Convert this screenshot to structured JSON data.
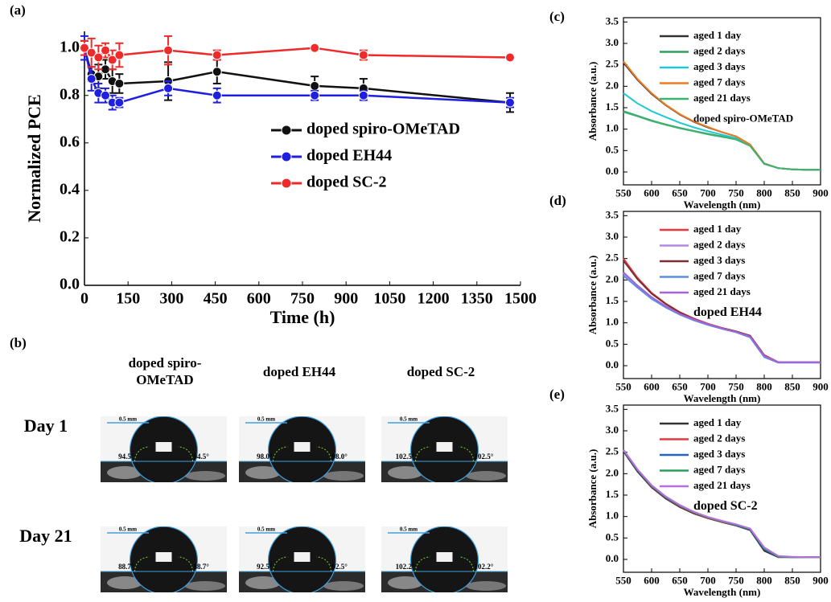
{
  "chart_data": [
    {
      "type": "line",
      "panel_label": "(a)",
      "x_label": "Time (h)",
      "y_label": "Normalized PCE",
      "x": [
        0,
        24,
        48,
        72,
        96,
        120,
        288,
        456,
        792,
        960,
        1464
      ],
      "xlim": [
        0,
        1500
      ],
      "xticks": [
        0,
        150,
        300,
        450,
        600,
        750,
        900,
        1050,
        1200,
        1350,
        1500
      ],
      "ylim": [
        0,
        1.07
      ],
      "yticks": [
        {
          "value": 0,
          "label": "0.0"
        },
        0.2,
        0.4,
        0.6,
        0.8,
        {
          "value": 1,
          "label": "1.0"
        }
      ],
      "grid": false,
      "markers": true,
      "legend": "center right",
      "series": [
        {
          "name": "doped spiro-OMeTAD",
          "color": "#111111",
          "values": [
            1.0,
            0.89,
            0.88,
            0.91,
            0.86,
            0.85,
            0.86,
            0.9,
            0.84,
            0.83,
            0.77
          ],
          "errors": [
            0.03,
            0.03,
            0.05,
            0.04,
            0.05,
            0.04,
            0.08,
            0.05,
            0.04,
            0.04,
            0.04
          ]
        },
        {
          "name": "doped EH44",
          "color": "#1f1fe0",
          "values": [
            1.0,
            0.87,
            0.81,
            0.8,
            0.77,
            0.77,
            0.83,
            0.8,
            0.8,
            0.8,
            0.77
          ],
          "errors": [
            0.05,
            0.05,
            0.04,
            0.03,
            0.03,
            0.02,
            0.03,
            0.03,
            0.02,
            0.02,
            0.02
          ]
        },
        {
          "name": "doped SC-2",
          "color": "#ee2a2a",
          "values": [
            1.0,
            0.98,
            0.96,
            0.99,
            0.95,
            0.97,
            0.99,
            0.97,
            1.0,
            0.97,
            0.96
          ],
          "errors": [
            0.03,
            0.06,
            0.05,
            0.03,
            0.04,
            0.05,
            0.06,
            0.02,
            0.01,
            0.02,
            0.01
          ]
        }
      ]
    },
    {
      "type": "line",
      "panel_label": "(c)",
      "x_label": "Wavelength (nm)",
      "y_label": "Absorbance (a.u.)",
      "x": [
        550,
        575,
        600,
        625,
        650,
        675,
        700,
        725,
        750,
        775,
        800,
        825,
        850,
        875,
        900
      ],
      "xlim": [
        550,
        900
      ],
      "xticks": [
        550,
        600,
        650,
        700,
        750,
        800,
        850,
        900
      ],
      "ylim": [
        -0.3,
        3.6
      ],
      "yticks": [
        {
          "value": 0,
          "label": "0.0"
        },
        0.5,
        {
          "value": 1,
          "label": "1.0"
        },
        1.5,
        {
          "value": 2,
          "label": "2.0"
        },
        2.5,
        {
          "value": 3,
          "label": "3.0"
        },
        3.5
      ],
      "grid": false,
      "markers": false,
      "legend": "upper right",
      "annotation": {
        "text": "doped spiro-OMeTAD",
        "color": "#111111"
      },
      "series": [
        {
          "name": "aged 1 day",
          "color": "#333333",
          "values": [
            2.55,
            2.15,
            1.82,
            1.56,
            1.34,
            1.17,
            1.04,
            0.93,
            0.83,
            0.64,
            0.2,
            0.09,
            0.06,
            0.05,
            0.05
          ]
        },
        {
          "name": "aged 2 days",
          "color": "#2e9e5b",
          "values": [
            1.42,
            1.31,
            1.2,
            1.11,
            1.03,
            0.96,
            0.89,
            0.83,
            0.76,
            0.61,
            0.19,
            0.09,
            0.06,
            0.05,
            0.05
          ]
        },
        {
          "name": "aged 3 days",
          "color": "#1fc8d8",
          "values": [
            1.84,
            1.6,
            1.42,
            1.28,
            1.15,
            1.04,
            0.95,
            0.87,
            0.79,
            0.62,
            0.19,
            0.09,
            0.06,
            0.05,
            0.05
          ]
        },
        {
          "name": "aged 7 days",
          "color": "#f07a22",
          "values": [
            2.58,
            2.17,
            1.84,
            1.57,
            1.35,
            1.18,
            1.05,
            0.93,
            0.83,
            0.64,
            0.2,
            0.09,
            0.06,
            0.05,
            0.05
          ]
        },
        {
          "name": "aged 21 days",
          "color": "#3cb371",
          "values": [
            1.4,
            1.3,
            1.19,
            1.1,
            1.02,
            0.95,
            0.88,
            0.82,
            0.76,
            0.61,
            0.19,
            0.09,
            0.06,
            0.05,
            0.05
          ]
        }
      ]
    },
    {
      "type": "line",
      "panel_label": "(d)",
      "x_label": "Wavelength (nm)",
      "y_label": "Absorbance (a.u.)",
      "x": [
        550,
        575,
        600,
        625,
        650,
        675,
        700,
        725,
        750,
        775,
        800,
        825,
        850,
        875,
        900
      ],
      "xlim": [
        550,
        900
      ],
      "xticks": [
        550,
        600,
        650,
        700,
        750,
        800,
        850,
        900
      ],
      "ylim": [
        -0.3,
        3.6
      ],
      "yticks": [
        {
          "value": 0,
          "label": "0.0"
        },
        0.5,
        {
          "value": 1,
          "label": "1.0"
        },
        1.5,
        {
          "value": 2,
          "label": "2.0"
        },
        2.5,
        {
          "value": 3,
          "label": "3.0"
        },
        3.5
      ],
      "grid": false,
      "markers": false,
      "legend": "upper right",
      "annotation": {
        "text": "doped EH44",
        "color": "#1f1fe0"
      },
      "series": [
        {
          "name": "aged 1 day",
          "color": "#e8383d",
          "values": [
            2.5,
            2.05,
            1.7,
            1.45,
            1.25,
            1.1,
            0.98,
            0.88,
            0.8,
            0.7,
            0.25,
            0.08,
            0.08,
            0.08,
            0.08
          ]
        },
        {
          "name": "aged 2 days",
          "color": "#b388e6",
          "values": [
            2.15,
            1.85,
            1.58,
            1.38,
            1.2,
            1.07,
            0.96,
            0.87,
            0.79,
            0.68,
            0.22,
            0.08,
            0.08,
            0.08,
            0.08
          ]
        },
        {
          "name": "aged 3 days",
          "color": "#7b2d32",
          "values": [
            2.45,
            2.02,
            1.68,
            1.44,
            1.24,
            1.09,
            0.97,
            0.88,
            0.8,
            0.7,
            0.24,
            0.08,
            0.08,
            0.08,
            0.08
          ]
        },
        {
          "name": "aged 7 days",
          "color": "#5b8fd9",
          "values": [
            2.1,
            1.82,
            1.56,
            1.36,
            1.19,
            1.06,
            0.95,
            0.86,
            0.78,
            0.66,
            0.2,
            0.07,
            0.07,
            0.07,
            0.07
          ]
        },
        {
          "name": "aged 21 days",
          "color": "#a463d8",
          "values": [
            2.18,
            1.87,
            1.6,
            1.39,
            1.21,
            1.08,
            0.97,
            0.87,
            0.79,
            0.68,
            0.23,
            0.08,
            0.08,
            0.08,
            0.08
          ]
        }
      ]
    },
    {
      "type": "line",
      "panel_label": "(e)",
      "x_label": "Wavelength (nm)",
      "y_label": "Absorbance (a.u.)",
      "x": [
        550,
        575,
        600,
        625,
        650,
        675,
        700,
        725,
        750,
        775,
        800,
        825,
        850,
        875,
        900
      ],
      "xlim": [
        550,
        900
      ],
      "xticks": [
        550,
        600,
        650,
        700,
        750,
        800,
        850,
        900
      ],
      "ylim": [
        -0.3,
        3.6
      ],
      "yticks": [
        {
          "value": 0,
          "label": "0.0"
        },
        0.5,
        {
          "value": 1,
          "label": "1.0"
        },
        1.5,
        {
          "value": 2,
          "label": "2.0"
        },
        2.5,
        {
          "value": 3,
          "label": "3.0"
        },
        3.5
      ],
      "grid": false,
      "markers": false,
      "legend": "upper right",
      "annotation": {
        "text": "doped SC-2",
        "color": "#ee2a2a"
      },
      "series": [
        {
          "name": "aged 1 day",
          "color": "#333333",
          "values": [
            2.52,
            2.05,
            1.68,
            1.42,
            1.22,
            1.07,
            0.96,
            0.87,
            0.79,
            0.68,
            0.2,
            0.05,
            0.05,
            0.05,
            0.05
          ]
        },
        {
          "name": "aged 2 days",
          "color": "#e0393e",
          "values": [
            2.55,
            2.08,
            1.7,
            1.44,
            1.24,
            1.09,
            0.97,
            0.88,
            0.8,
            0.7,
            0.24,
            0.06,
            0.05,
            0.05,
            0.05
          ]
        },
        {
          "name": "aged 3 days",
          "color": "#2762c9",
          "values": [
            2.55,
            2.08,
            1.71,
            1.45,
            1.25,
            1.1,
            0.98,
            0.89,
            0.8,
            0.7,
            0.24,
            0.06,
            0.05,
            0.05,
            0.05
          ]
        },
        {
          "name": "aged 7 days",
          "color": "#2e9e5b",
          "values": [
            2.55,
            2.09,
            1.72,
            1.46,
            1.26,
            1.1,
            0.98,
            0.89,
            0.81,
            0.71,
            0.26,
            0.07,
            0.05,
            0.05,
            0.05
          ]
        },
        {
          "name": "aged 21 days",
          "color": "#b76fe0",
          "values": [
            2.56,
            2.1,
            1.73,
            1.47,
            1.27,
            1.11,
            0.99,
            0.9,
            0.82,
            0.72,
            0.28,
            0.08,
            0.06,
            0.05,
            0.05
          ]
        }
      ]
    }
  ],
  "panel_b": {
    "label": "(b)",
    "columns": [
      "doped spiro-OMeTAD",
      "doped EH44",
      "doped SC-2"
    ],
    "rows": [
      {
        "label": "Day 1",
        "images": [
          {
            "scale": "0.5 mm",
            "angles": [
              "94.5°",
              "94.5°"
            ]
          },
          {
            "scale": "0.5 mm",
            "angles": [
              "98.0°",
              "98.0°"
            ]
          },
          {
            "scale": "0.5 mm",
            "angles": [
              "102.5°",
              "102.5°"
            ]
          }
        ]
      },
      {
        "label": "Day 21",
        "images": [
          {
            "scale": "0.5 mm",
            "angles": [
              "88.7°",
              "88.7°"
            ]
          },
          {
            "scale": "0.5 mm",
            "angles": [
              "92.5°",
              "92.5°"
            ]
          },
          {
            "scale": "0.5 mm",
            "angles": [
              "102.2°",
              "102.2°"
            ]
          }
        ]
      }
    ]
  }
}
